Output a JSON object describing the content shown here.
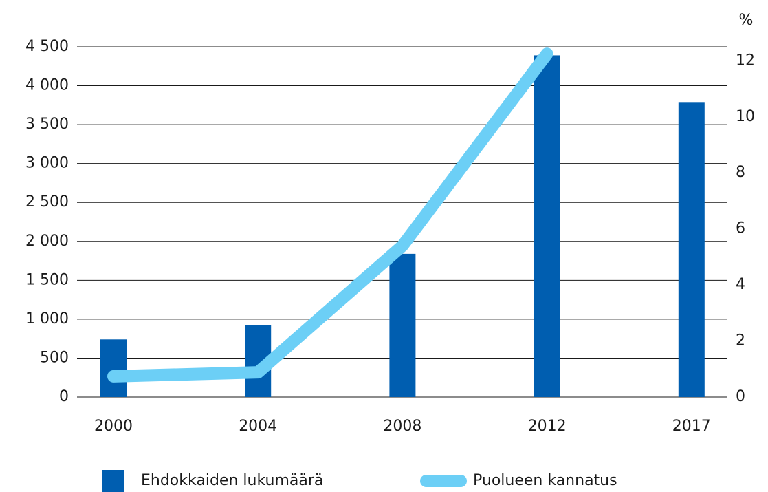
{
  "chart_data": {
    "type": "bar_line",
    "categories": [
      "2000",
      "2004",
      "2008",
      "2012",
      "2017"
    ],
    "series": [
      {
        "name": "Ehdokkaiden lukumäärä",
        "type": "bar",
        "color": "#005eb0",
        "values": [
          740,
          920,
          1840,
          4390,
          3790
        ]
      },
      {
        "name": "Puolueen kannatus",
        "type": "line",
        "axis": "y2",
        "color": "#6ccff6",
        "values": [
          0.74,
          0.88,
          5.4,
          12.25,
          null
        ]
      }
    ],
    "ylim": [
      0,
      4500
    ],
    "yticks": [
      0,
      500,
      {
        "value": 1000,
        "label": "1 000"
      },
      {
        "value": 1500,
        "label": "1 500"
      },
      {
        "value": 2000,
        "label": "2 000"
      },
      {
        "value": 2500,
        "label": "2 500"
      },
      {
        "value": 3000,
        "label": "3 000"
      },
      {
        "value": 3500,
        "label": "3 500"
      },
      {
        "value": 4000,
        "label": "4 000"
      },
      {
        "value": 4500,
        "label": "4 500"
      }
    ],
    "y2lim": [
      0,
      12.5
    ],
    "y2ticks": [
      0,
      2,
      4,
      6,
      8,
      10,
      12
    ],
    "y2_label": "%",
    "grid": true
  }
}
